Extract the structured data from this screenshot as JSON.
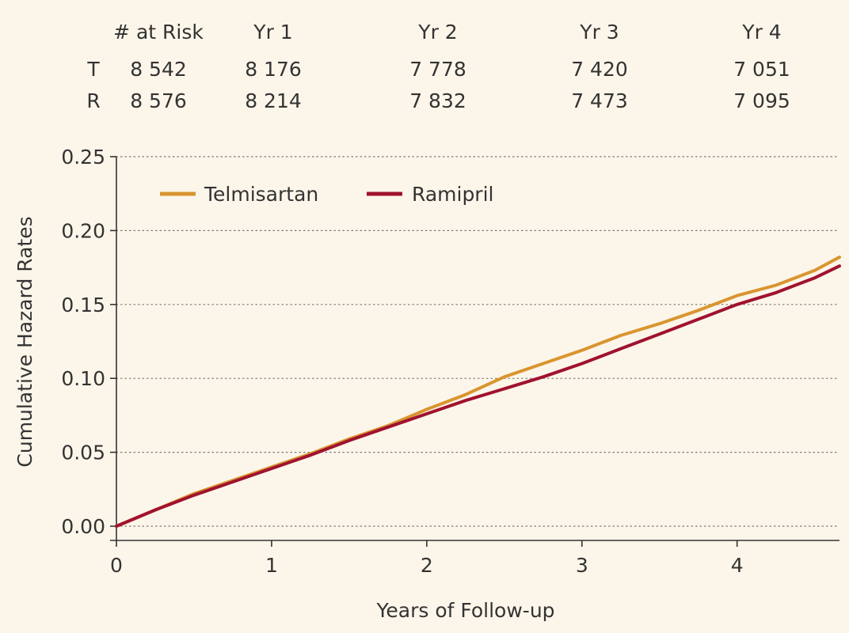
{
  "risk_table": {
    "header": [
      "# at Risk",
      "Yr 1",
      "Yr 2",
      "Yr 3",
      "Yr 4"
    ],
    "rows": [
      {
        "label": "T",
        "values": [
          "8 542",
          "8 176",
          "7 778",
          "7 420",
          "7 051"
        ]
      },
      {
        "label": "R",
        "values": [
          "8 576",
          "8 214",
          "7 832",
          "7 473",
          "7 095"
        ]
      }
    ]
  },
  "chart_data": {
    "type": "line",
    "title": "",
    "xlabel": "Years of Follow-up",
    "ylabel": "Cumulative Hazard Rates",
    "xlim": [
      0,
      4.66
    ],
    "ylim": [
      0,
      0.25
    ],
    "xticks": [
      0,
      1,
      2,
      3,
      4
    ],
    "yticks": [
      0,
      0.05,
      0.1,
      0.15,
      0.2,
      0.25
    ],
    "ytick_labels": [
      "0.00",
      "0.05",
      "0.10",
      "0.15",
      "0.20",
      "0.25"
    ],
    "grid": "horizontal-dotted",
    "legend_position": "top-left",
    "series": [
      {
        "name": "Telmisartan",
        "color": "#d9952f",
        "x": [
          0,
          0.25,
          0.5,
          0.75,
          1.0,
          1.25,
          1.5,
          1.75,
          2.0,
          2.25,
          2.5,
          2.75,
          3.0,
          3.25,
          3.5,
          3.75,
          4.0,
          4.25,
          4.5,
          4.66
        ],
        "y": [
          0,
          0.011,
          0.022,
          0.031,
          0.04,
          0.049,
          0.059,
          0.068,
          0.079,
          0.089,
          0.101,
          0.11,
          0.119,
          0.129,
          0.137,
          0.146,
          0.156,
          0.163,
          0.173,
          0.182
        ]
      },
      {
        "name": "Ramipril",
        "color": "#a0122e",
        "x": [
          0,
          0.25,
          0.5,
          0.75,
          1.0,
          1.25,
          1.5,
          1.75,
          2.0,
          2.25,
          2.5,
          2.75,
          3.0,
          3.25,
          3.5,
          3.75,
          4.0,
          4.25,
          4.5,
          4.66
        ],
        "y": [
          0,
          0.011,
          0.021,
          0.03,
          0.039,
          0.048,
          0.058,
          0.067,
          0.076,
          0.085,
          0.093,
          0.101,
          0.11,
          0.12,
          0.13,
          0.14,
          0.15,
          0.158,
          0.168,
          0.176
        ]
      }
    ]
  }
}
